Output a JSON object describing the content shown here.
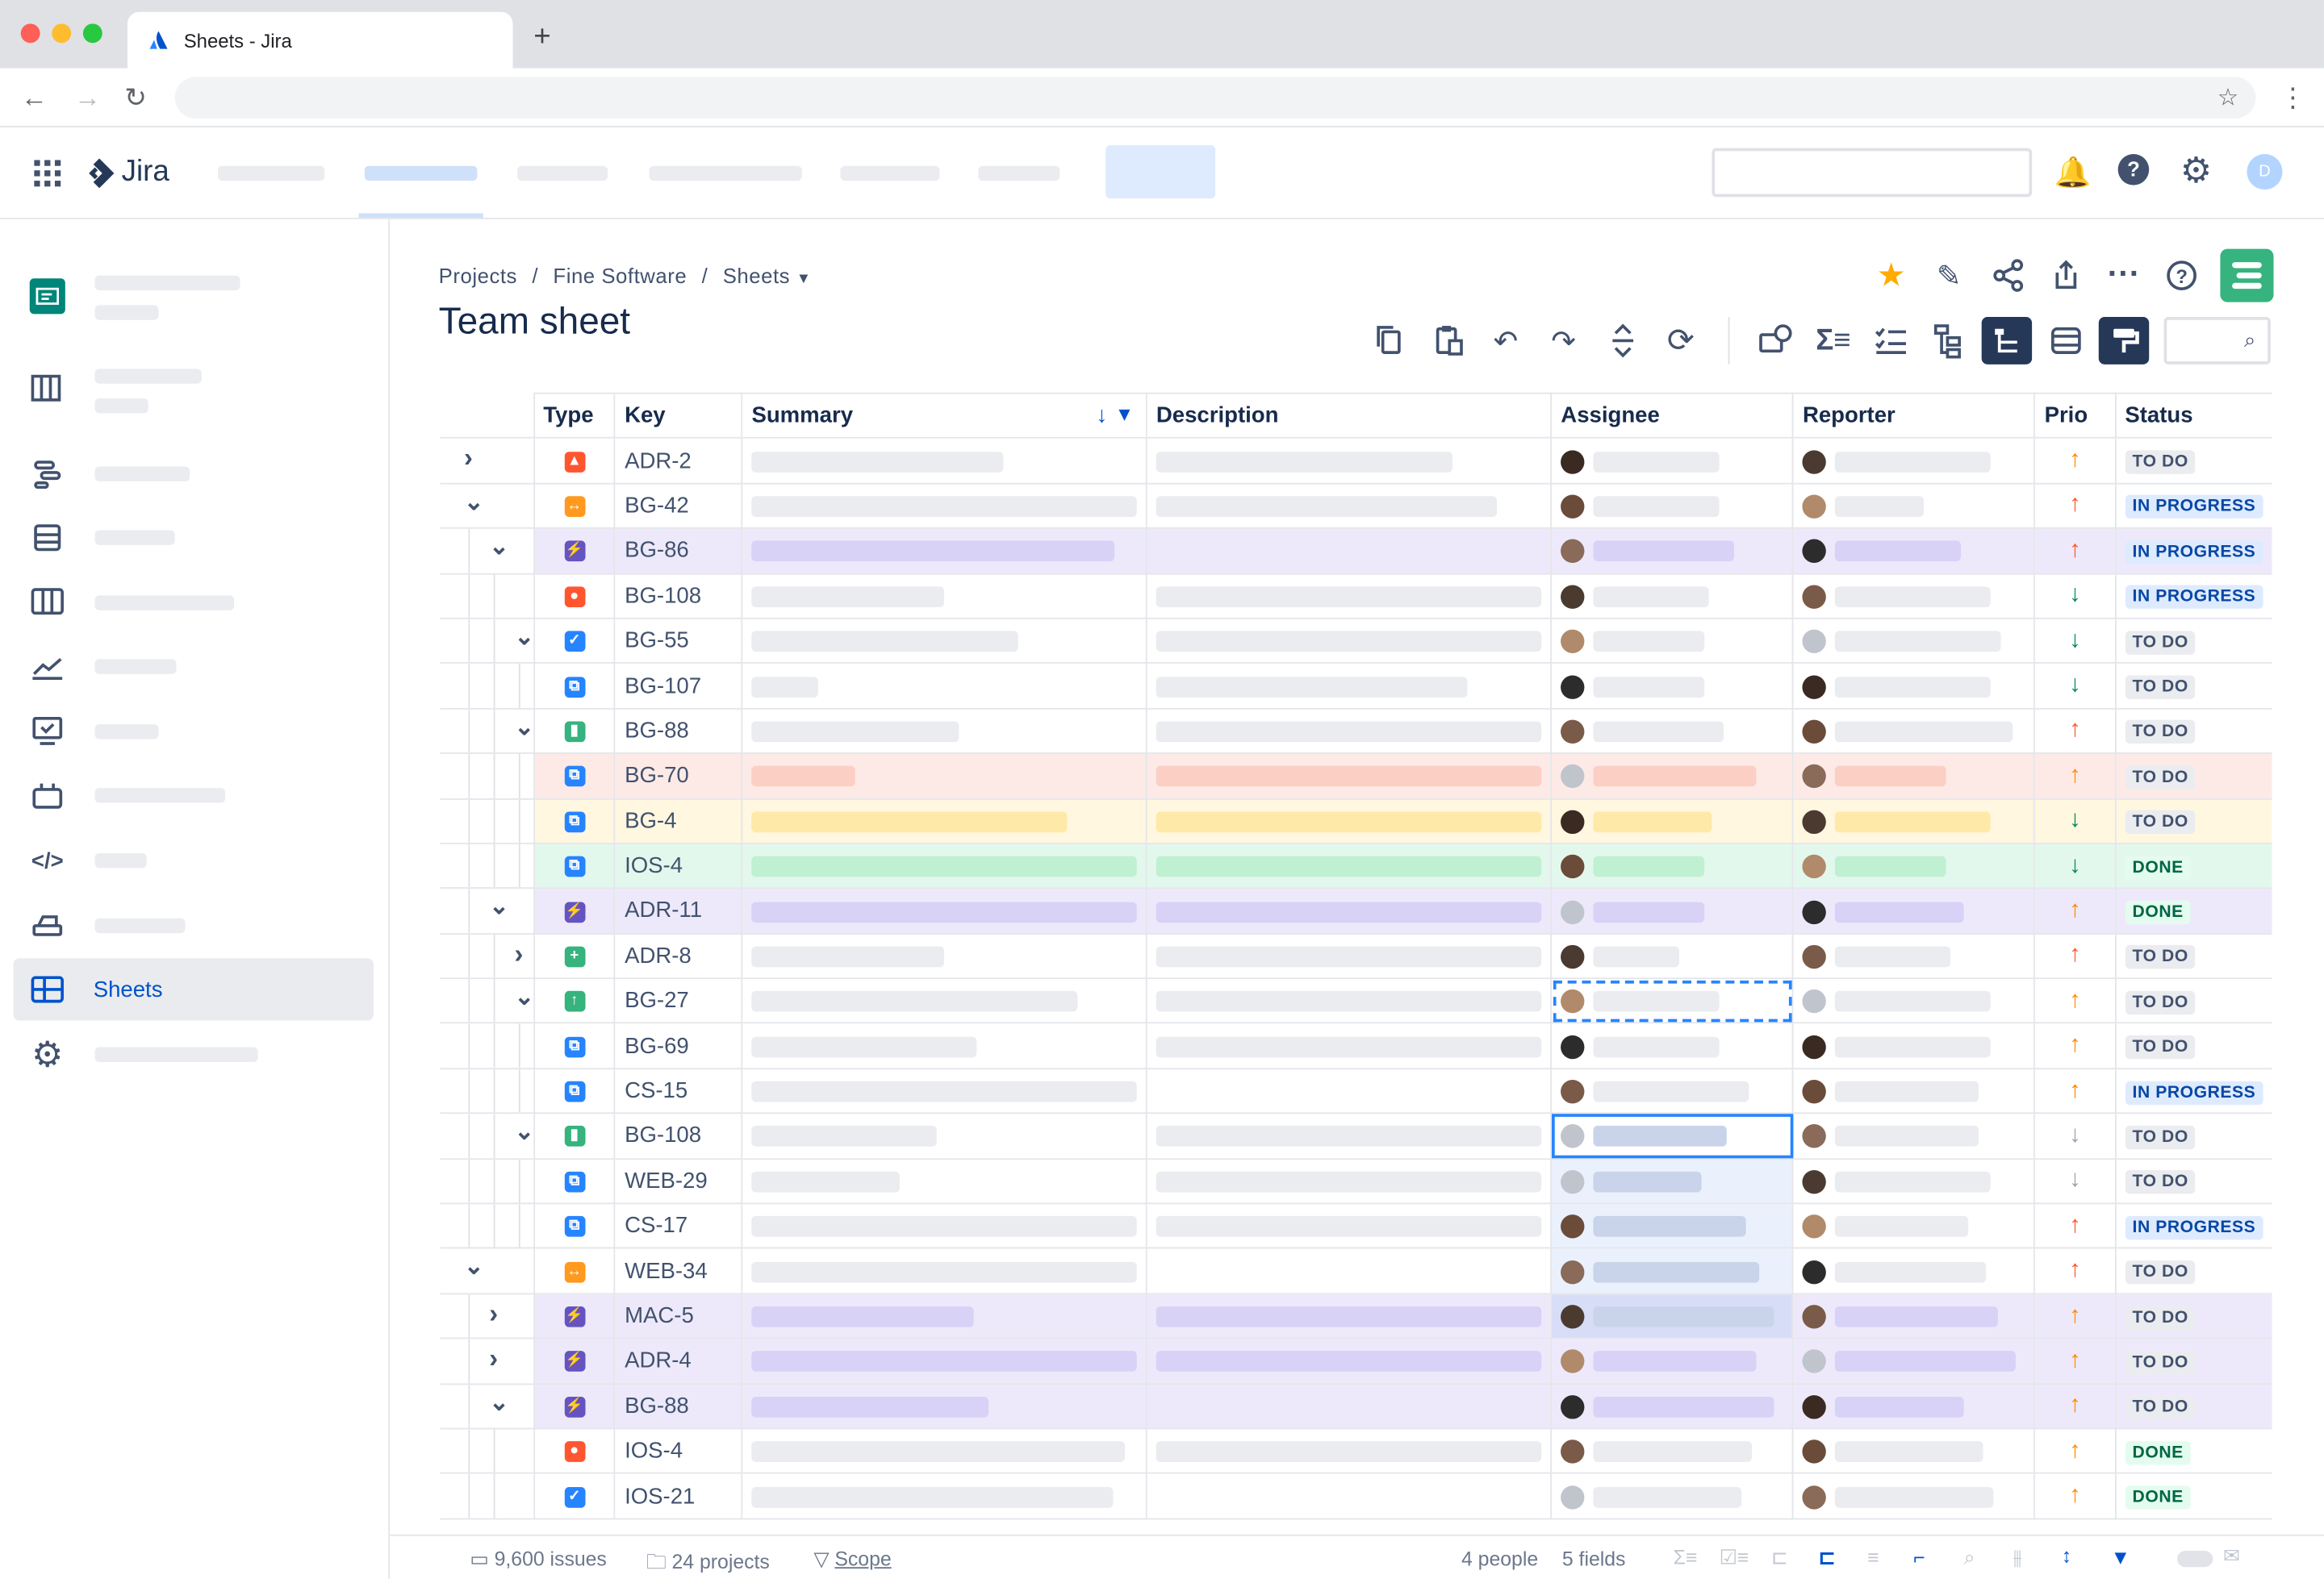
{
  "browser": {
    "tab_title": "Sheets - Jira",
    "new_tab": "+"
  },
  "jira": {
    "logo_text": "Jira",
    "avatar_initial": "D"
  },
  "breadcrumb": {
    "projects": "Projects",
    "sep": "/",
    "project": "Fine Software",
    "sheets": "Sheets"
  },
  "page": {
    "title": "Team sheet"
  },
  "columns": [
    "Type",
    "Key",
    "Summary",
    "Description",
    "Assignee",
    "Reporter",
    "Prio",
    "Status"
  ],
  "rows": [
    {
      "indent": 0,
      "toggle": ">",
      "type": "bug",
      "key": "ADR-2",
      "sum": 170,
      "desc": 200,
      "asg": 85,
      "rep": 105,
      "prio": "up-orange",
      "status": "TO DO",
      "bg": ""
    },
    {
      "indent": 0,
      "toggle": "v",
      "type": "epic-orange",
      "key": "BG-42",
      "sum": 260,
      "desc": 230,
      "asg": 85,
      "rep": 60,
      "prio": "up-red",
      "status": "IN PROGRESS",
      "bg": ""
    },
    {
      "indent": 1,
      "toggle": "v",
      "type": "epic",
      "key": "BG-86",
      "sum": 245,
      "desc": 0,
      "asg": 95,
      "rep": 85,
      "prio": "up-red",
      "status": "IN PROGRESS",
      "bg": "#ede9fb"
    },
    {
      "indent": 2,
      "toggle": "",
      "type": "bug2",
      "key": "BG-108",
      "sum": 130,
      "desc": 260,
      "asg": 78,
      "rep": 105,
      "prio": "down-green",
      "status": "IN PROGRESS",
      "bg": ""
    },
    {
      "indent": 2,
      "toggle": "v",
      "type": "task",
      "key": "BG-55",
      "sum": 180,
      "desc": 260,
      "asg": 75,
      "rep": 112,
      "prio": "down-green",
      "status": "TO DO",
      "bg": ""
    },
    {
      "indent": 3,
      "toggle": "",
      "type": "sub",
      "key": "BG-107",
      "sum": 45,
      "desc": 210,
      "asg": 75,
      "rep": 105,
      "prio": "down-green",
      "status": "TO DO",
      "bg": ""
    },
    {
      "indent": 2,
      "toggle": "v",
      "type": "story",
      "key": "BG-88",
      "sum": 140,
      "desc": 260,
      "asg": 88,
      "rep": 120,
      "prio": "up-red",
      "status": "TO DO",
      "bg": ""
    },
    {
      "indent": 3,
      "toggle": "",
      "type": "sub",
      "key": "BG-70",
      "sum": 70,
      "desc": 260,
      "asg": 110,
      "rep": 75,
      "prio": "up-orange",
      "status": "TO DO",
      "bg": "#fdeae6"
    },
    {
      "indent": 3,
      "toggle": "",
      "type": "sub",
      "key": "BG-4",
      "sum": 213,
      "desc": 260,
      "asg": 80,
      "rep": 105,
      "prio": "down-green",
      "status": "TO DO",
      "bg": "#fff7e0"
    },
    {
      "indent": 3,
      "toggle": "",
      "type": "sub",
      "key": "IOS-4",
      "sum": 260,
      "desc": 260,
      "asg": 75,
      "rep": 75,
      "prio": "down-green",
      "status": "DONE",
      "bg": "#e3f8ec"
    },
    {
      "indent": 1,
      "toggle": "v",
      "type": "epic",
      "key": "ADR-11",
      "sum": 260,
      "desc": 260,
      "asg": 75,
      "rep": 87,
      "prio": "up-orange",
      "status": "DONE",
      "bg": "#ede9fb"
    },
    {
      "indent": 2,
      "toggle": ">",
      "type": "new",
      "key": "ADR-8",
      "sum": 130,
      "desc": 260,
      "asg": 58,
      "rep": 78,
      "prio": "up-red",
      "status": "TO DO",
      "bg": ""
    },
    {
      "indent": 2,
      "toggle": "v",
      "type": "improve",
      "key": "BG-27",
      "sum": 220,
      "desc": 260,
      "asg": 85,
      "rep": 105,
      "prio": "up-orange",
      "status": "TO DO",
      "bg": ""
    },
    {
      "indent": 3,
      "toggle": "",
      "type": "sub",
      "key": "BG-69",
      "sum": 152,
      "desc": 260,
      "asg": 85,
      "rep": 105,
      "prio": "up-orange",
      "status": "TO DO",
      "bg": ""
    },
    {
      "indent": 3,
      "toggle": "",
      "type": "sub",
      "key": "CS-15",
      "sum": 260,
      "desc": 0,
      "asg": 105,
      "rep": 97,
      "prio": "up-orange",
      "status": "IN PROGRESS",
      "bg": ""
    },
    {
      "indent": 2,
      "toggle": "v",
      "type": "story",
      "key": "BG-108",
      "sum": 125,
      "desc": 260,
      "asg": 90,
      "rep": 97,
      "prio": "down-gray",
      "status": "TO DO",
      "bg": ""
    },
    {
      "indent": 3,
      "toggle": "",
      "type": "sub",
      "key": "WEB-29",
      "sum": 100,
      "desc": 260,
      "asg": 73,
      "rep": 105,
      "prio": "down-gray",
      "status": "TO DO",
      "bg": ""
    },
    {
      "indent": 3,
      "toggle": "",
      "type": "sub",
      "key": "CS-17",
      "sum": 260,
      "desc": 260,
      "asg": 103,
      "rep": 90,
      "prio": "up-red",
      "status": "IN PROGRESS",
      "bg": ""
    },
    {
      "indent": 0,
      "toggle": "v",
      "type": "epic-orange",
      "key": "WEB-34",
      "sum": 260,
      "desc": 0,
      "asg": 112,
      "rep": 102,
      "prio": "up-red",
      "status": "TO DO",
      "bg": ""
    },
    {
      "indent": 1,
      "toggle": ">",
      "type": "epic",
      "key": "MAC-5",
      "sum": 150,
      "desc": 260,
      "asg": 122,
      "rep": 110,
      "prio": "up-orange",
      "status": "TO DO",
      "bg": "#ede9fb"
    },
    {
      "indent": 1,
      "toggle": ">",
      "type": "epic",
      "key": "ADR-4",
      "sum": 260,
      "desc": 260,
      "asg": 110,
      "rep": 122,
      "prio": "up-orange",
      "status": "TO DO",
      "bg": "#ede9fb"
    },
    {
      "indent": 1,
      "toggle": "v",
      "type": "epic",
      "key": "BG-88",
      "sum": 160,
      "desc": 0,
      "asg": 122,
      "rep": 87,
      "prio": "up-orange",
      "status": "TO DO",
      "bg": "#ede9fb"
    },
    {
      "indent": 2,
      "toggle": "",
      "type": "bug2",
      "key": "IOS-4",
      "sum": 252,
      "desc": 260,
      "asg": 107,
      "rep": 100,
      "prio": "up-orange",
      "status": "DONE",
      "bg": ""
    },
    {
      "indent": 2,
      "toggle": "",
      "type": "task",
      "key": "IOS-21",
      "sum": 244,
      "desc": 0,
      "asg": 100,
      "rep": 107,
      "prio": "up-orange",
      "status": "DONE",
      "bg": ""
    }
  ],
  "footer": {
    "issues": "9,600 issues",
    "projects": "24 projects",
    "scope": "Scope",
    "people": "4 people",
    "fields": "5 fields"
  },
  "colors": {
    "accent": "#0052cc",
    "purple": "#ede9fb",
    "green_icon": "#36b37e"
  }
}
